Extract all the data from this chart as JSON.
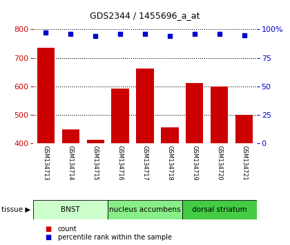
{
  "title": "GDS2344 / 1455696_a_at",
  "samples": [
    "GSM134713",
    "GSM134714",
    "GSM134715",
    "GSM134716",
    "GSM134717",
    "GSM134718",
    "GSM134719",
    "GSM134720",
    "GSM134721"
  ],
  "counts": [
    735,
    448,
    412,
    592,
    662,
    456,
    612,
    600,
    500
  ],
  "percentiles": [
    97,
    96,
    94,
    96,
    96,
    94,
    96,
    96,
    95
  ],
  "ylim_left": [
    400,
    800
  ],
  "ylim_right": [
    0,
    100
  ],
  "yticks_left": [
    400,
    500,
    600,
    700,
    800
  ],
  "yticks_right": [
    0,
    25,
    50,
    75,
    100
  ],
  "bar_color": "#cc0000",
  "dot_color": "#0000cc",
  "bar_width": 0.7,
  "tissue_groups": [
    {
      "label": "BNST",
      "start": 0,
      "end": 3,
      "color": "#ccffcc"
    },
    {
      "label": "nucleus accumbens",
      "start": 3,
      "end": 6,
      "color": "#88ee88"
    },
    {
      "label": "dorsal striatum",
      "start": 6,
      "end": 9,
      "color": "#44cc44"
    }
  ],
  "tissue_label": "tissue",
  "legend_count_label": "count",
  "legend_pct_label": "percentile rank within the sample",
  "gray_box_color": "#c8c8c8",
  "plot_bg": "#ffffff",
  "title_fontsize": 9,
  "ytick_fontsize": 8,
  "sample_fontsize": 6,
  "tissue_fontsize": 7.5,
  "legend_fontsize": 7
}
